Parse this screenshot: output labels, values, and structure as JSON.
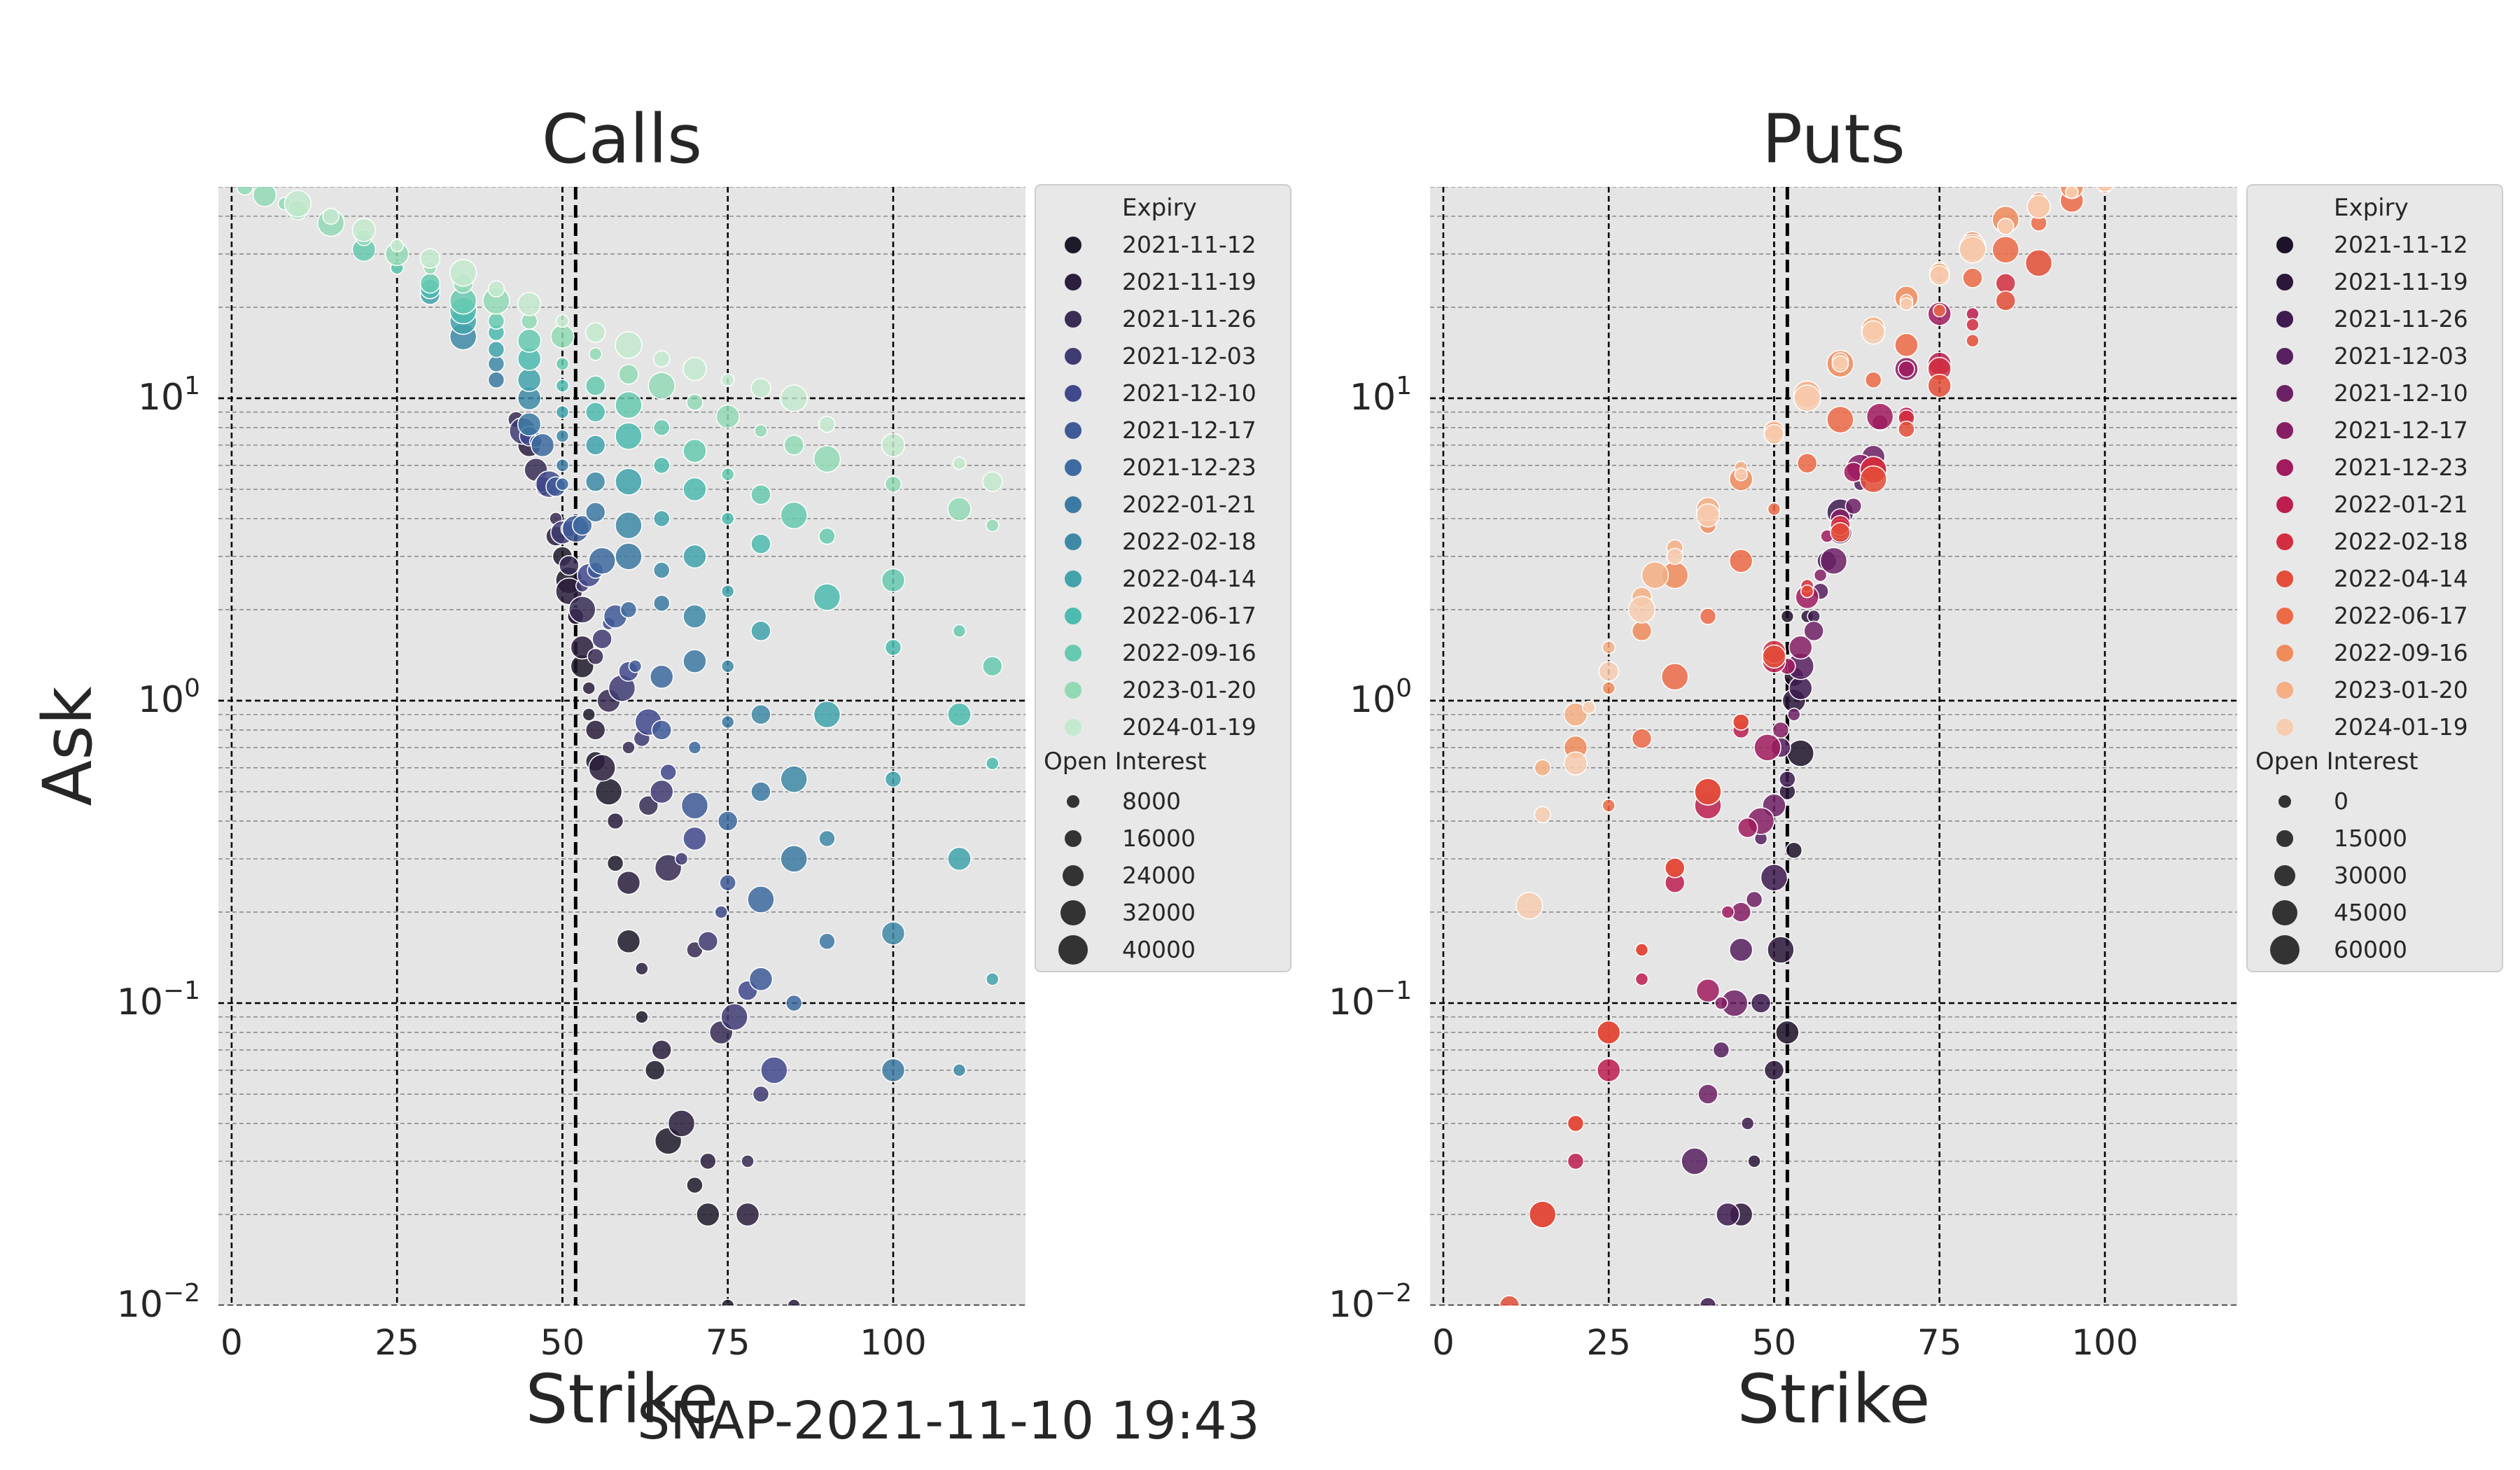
{
  "figure": {
    "suptitle": "SNAP-2021-11-10 19:43"
  },
  "chart_data": [
    {
      "type": "scatter",
      "title": "Calls",
      "xlabel": "Strike",
      "ylabel": "Ask",
      "yscale": "log",
      "xlim": [
        -2,
        120
      ],
      "ylim": [
        0.01,
        50
      ],
      "x_ticks": [
        0,
        25,
        50,
        75,
        100
      ],
      "y_ticks": [
        0.01,
        0.1,
        1,
        10
      ],
      "y_tick_labels": [
        {
          "base": "10",
          "exp": "−2"
        },
        {
          "base": "10",
          "exp": "−1"
        },
        {
          "base": "10",
          "exp": "0"
        },
        {
          "base": "10",
          "exp": "1"
        }
      ],
      "grid": true,
      "vlines": [
        52,
        50
      ],
      "legend": {
        "placement": "outside-right",
        "hue_title": "Expiry",
        "size_title": "Open Interest",
        "hue_entries": [
          "2021-11-12",
          "2021-11-19",
          "2021-11-26",
          "2021-12-03",
          "2021-12-10",
          "2021-12-17",
          "2021-12-23",
          "2022-01-21",
          "2022-02-18",
          "2022-04-14",
          "2022-06-17",
          "2022-09-16",
          "2023-01-20",
          "2024-01-19"
        ],
        "hue_colors": [
          "#1e1a29",
          "#2c1f3d",
          "#382d55",
          "#3f3b73",
          "#41498d",
          "#405a98",
          "#3d6a9f",
          "#3d7aa3",
          "#3e8aa6",
          "#42a3ab",
          "#4ebbaf",
          "#67cab0",
          "#93d9b6",
          "#c4e9cf"
        ],
        "size_entries": [
          "8000",
          "16000",
          "24000",
          "32000",
          "40000"
        ]
      },
      "series": [
        {
          "name": "2021-11-12",
          "x": [
            48,
            50,
            51,
            52,
            53,
            54,
            55,
            57,
            58,
            60,
            62,
            64,
            66,
            70,
            72,
            75
          ],
          "y": [
            5.0,
            3.0,
            2.5,
            1.9,
            1.3,
            0.9,
            0.63,
            0.5,
            0.29,
            0.16,
            0.09,
            0.06,
            0.035,
            0.025,
            0.02,
            0.01
          ]
        },
        {
          "name": "2021-11-19",
          "x": [
            45,
            47,
            49,
            51,
            52,
            53,
            54,
            55,
            56,
            58,
            60,
            62,
            65,
            68,
            72,
            78,
            85
          ],
          "y": [
            7.0,
            5.0,
            3.5,
            2.3,
            1.9,
            1.5,
            1.1,
            0.8,
            0.6,
            0.4,
            0.25,
            0.13,
            0.07,
            0.04,
            0.03,
            0.02,
            0.01
          ]
        },
        {
          "name": "2021-11-26",
          "x": [
            43,
            46,
            49,
            51,
            53,
            55,
            57,
            60,
            63,
            66,
            70,
            74,
            78
          ],
          "y": [
            8.5,
            5.8,
            4.0,
            2.8,
            2.0,
            1.4,
            1.0,
            0.7,
            0.45,
            0.28,
            0.15,
            0.08,
            0.03
          ]
        },
        {
          "name": "2021-12-03",
          "x": [
            44,
            47,
            50,
            53,
            56,
            59,
            62,
            65,
            68,
            72,
            76,
            80
          ],
          "y": [
            7.8,
            5.2,
            3.6,
            2.4,
            1.6,
            1.1,
            0.75,
            0.5,
            0.3,
            0.16,
            0.09,
            0.05
          ]
        },
        {
          "name": "2021-12-10",
          "x": [
            45,
            48,
            51,
            54,
            57,
            60,
            63,
            66,
            70,
            74,
            78,
            82
          ],
          "y": [
            7.5,
            5.2,
            3.7,
            2.6,
            1.8,
            1.25,
            0.85,
            0.58,
            0.35,
            0.2,
            0.11,
            0.06
          ]
        },
        {
          "name": "2021-12-17",
          "x": [
            46,
            49,
            52,
            55,
            58,
            61,
            65,
            70,
            75,
            80
          ],
          "y": [
            7.2,
            5.1,
            3.7,
            2.7,
            1.9,
            1.3,
            0.8,
            0.45,
            0.25,
            0.12
          ]
        },
        {
          "name": "2021-12-23",
          "x": [
            47,
            50,
            53,
            56,
            60,
            65,
            70,
            75,
            80,
            85
          ],
          "y": [
            7.0,
            5.2,
            3.8,
            2.9,
            2.0,
            1.2,
            0.7,
            0.4,
            0.22,
            0.1
          ]
        },
        {
          "name": "2022-01-21",
          "x": [
            40,
            45,
            50,
            55,
            60,
            65,
            70,
            75,
            80,
            85,
            90,
            100
          ],
          "y": [
            11.5,
            8.2,
            6.0,
            4.2,
            3.0,
            2.1,
            1.35,
            0.85,
            0.5,
            0.3,
            0.16,
            0.06
          ]
        },
        {
          "name": "2022-02-18",
          "x": [
            35,
            40,
            45,
            50,
            55,
            60,
            65,
            70,
            75,
            80,
            85,
            90,
            100,
            110
          ],
          "y": [
            16.0,
            13.0,
            10.0,
            7.5,
            5.3,
            3.8,
            2.7,
            1.9,
            1.3,
            0.9,
            0.55,
            0.35,
            0.17,
            0.06
          ]
        },
        {
          "name": "2022-04-14",
          "x": [
            30,
            35,
            40,
            45,
            50,
            55,
            60,
            65,
            70,
            75,
            80,
            90,
            100,
            110,
            115
          ],
          "y": [
            22.0,
            18.0,
            14.5,
            11.5,
            9.0,
            7.0,
            5.3,
            4.0,
            3.0,
            2.3,
            1.7,
            0.9,
            0.55,
            0.3,
            0.12
          ]
        },
        {
          "name": "2022-06-17",
          "x": [
            25,
            30,
            35,
            40,
            45,
            50,
            55,
            60,
            65,
            70,
            75,
            80,
            90,
            100,
            110,
            115
          ],
          "y": [
            27.0,
            23.0,
            19.5,
            16.5,
            13.5,
            11.0,
            9.0,
            7.5,
            6.0,
            5.0,
            4.0,
            3.3,
            2.2,
            1.5,
            0.9,
            0.62
          ]
        },
        {
          "name": "2022-09-16",
          "x": [
            20,
            25,
            30,
            35,
            40,
            45,
            50,
            55,
            60,
            65,
            70,
            75,
            80,
            85,
            90,
            100,
            110,
            115
          ],
          "y": [
            31.0,
            27.0,
            24.0,
            21.0,
            18.0,
            15.5,
            13.0,
            11.0,
            9.5,
            8.0,
            6.7,
            5.6,
            4.8,
            4.1,
            3.5,
            2.5,
            1.7,
            1.3
          ]
        },
        {
          "name": "2023-01-20",
          "x": [
            2,
            5,
            8,
            10,
            15,
            20,
            25,
            30,
            35,
            40,
            45,
            50,
            55,
            60,
            65,
            70,
            75,
            80,
            85,
            90,
            100,
            110,
            115
          ],
          "y": [
            50.0,
            47.0,
            44.0,
            42.0,
            38.0,
            34.0,
            30.0,
            27.0,
            24.0,
            21.0,
            18.0,
            16.0,
            14.0,
            12.0,
            11.0,
            9.7,
            8.7,
            7.8,
            7.0,
            6.3,
            5.2,
            4.3,
            3.8
          ]
        },
        {
          "name": "2024-01-19",
          "x": [
            10,
            15,
            20,
            25,
            30,
            35,
            40,
            45,
            50,
            55,
            60,
            65,
            70,
            75,
            80,
            85,
            90,
            100,
            110,
            115
          ],
          "y": [
            44.0,
            40.0,
            36.0,
            32.0,
            29.0,
            26.0,
            23.0,
            20.5,
            18.0,
            16.5,
            15.0,
            13.5,
            12.5,
            11.5,
            10.8,
            10.0,
            8.2,
            7.0,
            6.1,
            5.3
          ]
        }
      ]
    },
    {
      "type": "scatter",
      "title": "Puts",
      "xlabel": "Strike",
      "ylabel": "",
      "yscale": "log",
      "xlim": [
        -2,
        120
      ],
      "ylim": [
        0.01,
        50
      ],
      "x_ticks": [
        0,
        25,
        50,
        75,
        100
      ],
      "y_ticks": [
        0.01,
        0.1,
        1,
        10
      ],
      "y_tick_labels": [
        {
          "base": "10",
          "exp": "−2"
        },
        {
          "base": "10",
          "exp": "−1"
        },
        {
          "base": "10",
          "exp": "0"
        },
        {
          "base": "10",
          "exp": "1"
        }
      ],
      "grid": true,
      "vlines": [
        52,
        50
      ],
      "legend": {
        "placement": "outside-right",
        "hue_title": "Expiry",
        "size_title": "Open Interest",
        "hue_entries": [
          "2021-11-12",
          "2021-11-19",
          "2021-11-26",
          "2021-12-03",
          "2021-12-10",
          "2021-12-17",
          "2021-12-23",
          "2022-01-21",
          "2022-02-18",
          "2022-04-14",
          "2022-06-17",
          "2022-09-16",
          "2023-01-20",
          "2024-01-19"
        ],
        "hue_colors": [
          "#1d1329",
          "#2b1739",
          "#3e1b4f",
          "#57205f",
          "#6d2165",
          "#861e64",
          "#a11b5e",
          "#bc1f4f",
          "#d22e3f",
          "#e44d38",
          "#ec6a46",
          "#f08b5a",
          "#f4ae82",
          "#f7cdb0"
        ],
        "size_entries": [
          "0",
          "15000",
          "30000",
          "45000",
          "60000"
        ]
      },
      "series": [
        {
          "name": "2021-11-12",
          "x": [
            52,
            53,
            54,
            53,
            52
          ],
          "y": [
            1.9,
            1.2,
            0.67,
            0.32,
            0.08
          ]
        },
        {
          "name": "2021-11-19",
          "x": [
            45,
            47,
            50,
            51,
            52,
            53,
            55
          ],
          "y": [
            0.02,
            0.03,
            0.06,
            0.15,
            0.5,
            1.0,
            1.9
          ]
        },
        {
          "name": "2021-11-26",
          "x": [
            40,
            43,
            46,
            48,
            50,
            52,
            54,
            56,
            58,
            60
          ],
          "y": [
            0.01,
            0.02,
            0.04,
            0.1,
            0.26,
            0.55,
            1.1,
            1.9,
            2.9,
            4.2
          ]
        },
        {
          "name": "2021-12-03",
          "x": [
            38,
            42,
            45,
            48,
            51,
            54,
            57,
            60,
            63
          ],
          "y": [
            0.03,
            0.07,
            0.15,
            0.35,
            0.7,
            1.3,
            2.3,
            3.6,
            5.2
          ]
        },
        {
          "name": "2021-12-10",
          "x": [
            40,
            44,
            47,
            50,
            53,
            56,
            59,
            62,
            65
          ],
          "y": [
            0.05,
            0.1,
            0.22,
            0.45,
            0.9,
            1.7,
            2.9,
            4.4,
            6.4
          ]
        },
        {
          "name": "2021-12-17",
          "x": [
            42,
            45,
            48,
            51,
            54,
            57,
            60,
            63,
            66,
            70
          ],
          "y": [
            0.1,
            0.2,
            0.4,
            0.8,
            1.5,
            2.6,
            4.0,
            5.9,
            8.3,
            12.5
          ]
        },
        {
          "name": "2021-12-23",
          "x": [
            40,
            43,
            46,
            49,
            52,
            55,
            58,
            62,
            66,
            70,
            75
          ],
          "y": [
            0.11,
            0.2,
            0.38,
            0.7,
            1.3,
            2.2,
            3.5,
            5.7,
            8.7,
            12.5,
            19.0
          ]
        },
        {
          "name": "2022-01-21",
          "x": [
            20,
            25,
            30,
            35,
            40,
            45,
            50,
            55,
            60,
            65,
            70,
            75,
            80
          ],
          "y": [
            0.03,
            0.06,
            0.12,
            0.25,
            0.45,
            0.8,
            1.35,
            2.3,
            3.7,
            5.8,
            8.8,
            13.0,
            19.0
          ]
        },
        {
          "name": "2022-02-18",
          "x": [
            15,
            20,
            25,
            30,
            35,
            40,
            45,
            50,
            55,
            60,
            65,
            70,
            75,
            80,
            85
          ],
          "y": [
            0.02,
            0.04,
            0.08,
            0.15,
            0.28,
            0.5,
            0.85,
            1.45,
            2.4,
            3.8,
            5.8,
            8.6,
            12.5,
            17.5,
            24.0
          ]
        },
        {
          "name": "2022-04-14",
          "x": [
            10,
            15,
            20,
            25,
            30,
            35,
            40,
            45,
            50,
            55,
            60,
            65,
            70,
            75,
            80,
            85,
            90
          ],
          "y": [
            0.01,
            0.02,
            0.04,
            0.08,
            0.15,
            0.28,
            0.5,
            0.85,
            1.4,
            2.3,
            3.6,
            5.4,
            7.9,
            11.0,
            15.5,
            21.0,
            28.0
          ]
        },
        {
          "name": "2022-06-17",
          "x": [
            25,
            30,
            35,
            40,
            45,
            50,
            55,
            60,
            65,
            70,
            75,
            80,
            85,
            90,
            95,
            100
          ],
          "y": [
            0.45,
            0.75,
            1.2,
            1.9,
            2.9,
            4.3,
            6.1,
            8.5,
            11.5,
            15.0,
            19.5,
            25.0,
            31.0,
            38.0,
            45.0,
            50.0
          ]
        },
        {
          "name": "2022-09-16",
          "x": [
            20,
            25,
            30,
            35,
            40,
            45,
            50,
            55,
            60,
            65,
            70,
            75,
            80,
            85,
            90,
            95,
            100
          ],
          "y": [
            0.7,
            1.1,
            1.7,
            2.6,
            3.8,
            5.4,
            7.4,
            10.0,
            13.0,
            17.0,
            21.5,
            27.0,
            33.0,
            39.0,
            45.0,
            50.0,
            52.0
          ]
        },
        {
          "name": "2023-01-20",
          "x": [
            15,
            20,
            25,
            30,
            32,
            35,
            40,
            45,
            50,
            55,
            60,
            65,
            70,
            75,
            80,
            85,
            90,
            95,
            100
          ],
          "y": [
            0.6,
            0.9,
            1.5,
            2.2,
            2.6,
            3.2,
            4.3,
            5.9,
            7.8,
            10.3,
            13.3,
            17.0,
            21.0,
            26.0,
            31.5,
            37.0,
            43.0,
            48.0,
            52.0
          ]
        },
        {
          "name": "2024-01-19",
          "x": [
            13,
            15,
            20,
            22,
            25,
            30,
            35,
            40,
            45,
            50,
            55,
            60,
            65,
            70,
            75,
            80,
            85,
            90,
            95,
            100
          ],
          "y": [
            0.21,
            0.42,
            0.62,
            0.95,
            1.25,
            2.0,
            3.0,
            4.1,
            5.6,
            7.6,
            10.0,
            13.0,
            16.5,
            20.5,
            25.5,
            31.0,
            37.0,
            43.0,
            48.0,
            52.0
          ]
        }
      ]
    }
  ]
}
